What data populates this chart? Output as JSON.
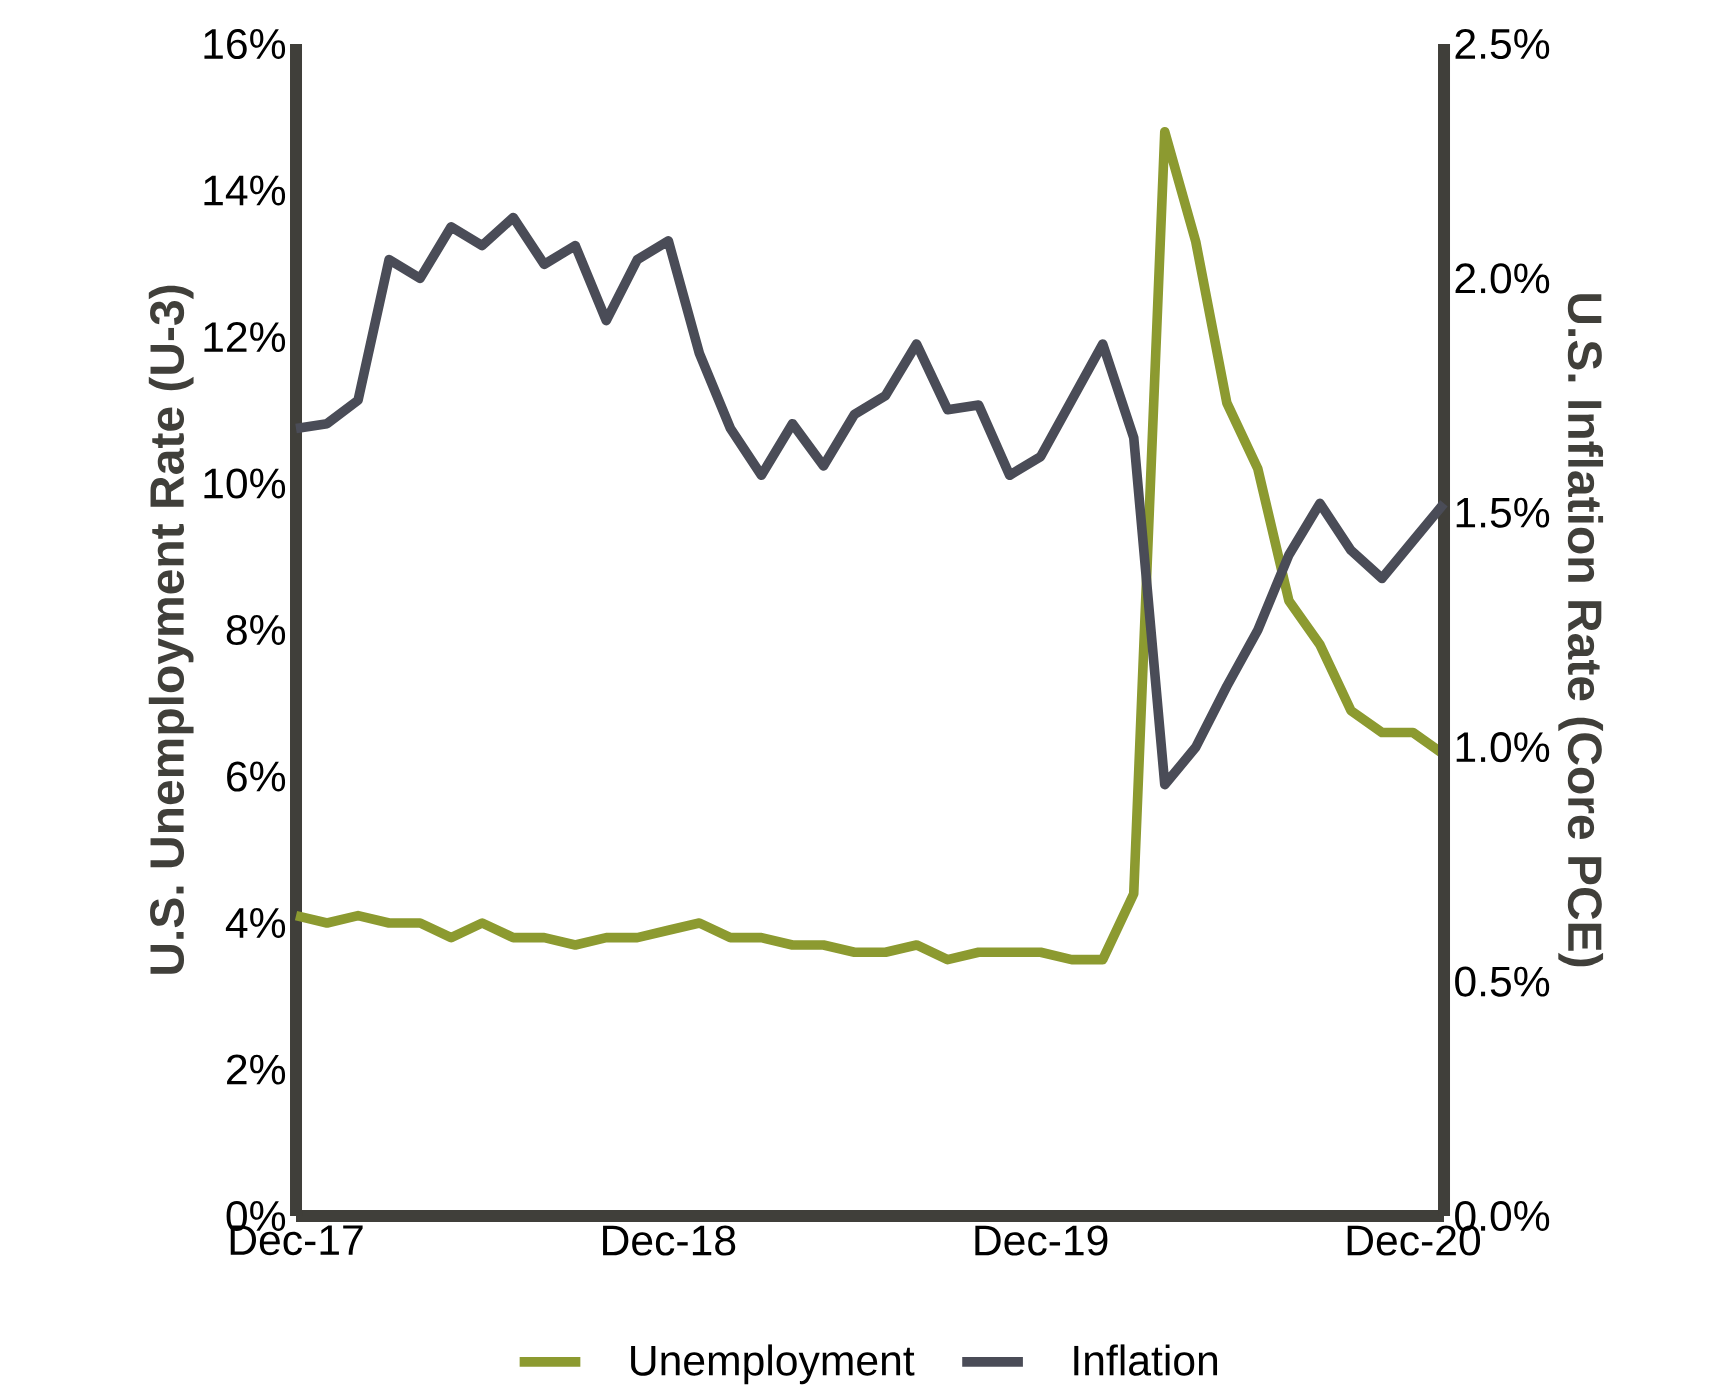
{
  "chart_data": {
    "type": "line",
    "xlabel": null,
    "ylabel": "U.S. Unemployment Rate (U-3)",
    "y2label": "U.S. Inflation Rate (Core PCE)",
    "categories": [
      "Dec-17",
      null,
      null,
      null,
      null,
      null,
      null,
      null,
      null,
      null,
      null,
      null,
      "Dec-18",
      null,
      null,
      null,
      null,
      null,
      null,
      null,
      null,
      null,
      null,
      null,
      "Dec-19",
      null,
      null,
      null,
      null,
      null,
      null,
      null,
      null,
      null,
      null,
      null,
      "Dec-20",
      null
    ],
    "series": [
      {
        "name": "Unemployment",
        "color": "#8c9a30",
        "values": [
          4.1,
          4.0,
          4.1,
          4.0,
          4.0,
          3.8,
          4.0,
          3.8,
          3.8,
          3.7,
          3.8,
          3.8,
          3.9,
          4.0,
          3.8,
          3.8,
          3.7,
          3.7,
          3.6,
          3.6,
          3.7,
          3.5,
          3.6,
          3.6,
          3.6,
          3.5,
          3.5,
          4.4,
          14.8,
          13.3,
          11.1,
          10.2,
          8.4,
          7.8,
          6.9,
          6.6,
          6.6,
          6.3
        ]
      },
      {
        "name": "Inflation",
        "color": "#4a4c57",
        "axis": "y2",
        "values": [
          1.68,
          1.69,
          1.74,
          2.04,
          2.0,
          2.11,
          2.07,
          2.13,
          2.03,
          2.07,
          1.91,
          2.04,
          2.08,
          1.84,
          1.68,
          1.58,
          1.69,
          1.6,
          1.71,
          1.75,
          1.86,
          1.72,
          1.73,
          1.58,
          1.62,
          1.74,
          1.86,
          1.66,
          0.92,
          1.0,
          1.13,
          1.25,
          1.41,
          1.52,
          1.42,
          1.36,
          1.44,
          1.52
        ]
      }
    ],
    "ylim": [
      0,
      16
    ],
    "yticks": [
      {
        "value": 0,
        "label": "0%"
      },
      {
        "value": 2,
        "label": "2%"
      },
      {
        "value": 4,
        "label": "4%"
      },
      {
        "value": 6,
        "label": "6%"
      },
      {
        "value": 8,
        "label": "8%"
      },
      {
        "value": 10,
        "label": "10%"
      },
      {
        "value": 12,
        "label": "12%"
      },
      {
        "value": 14,
        "label": "14%"
      },
      {
        "value": 16,
        "label": "16%"
      }
    ],
    "y2lim": [
      0,
      2.5
    ],
    "y2ticks": [
      {
        "value": 0,
        "label": "0.0%"
      },
      {
        "value": 0.5,
        "label": "0.5%"
      },
      {
        "value": 1.0,
        "label": "1.0%"
      },
      {
        "value": 1.5,
        "label": "1.5%"
      },
      {
        "value": 2.0,
        "label": "2.0%"
      },
      {
        "value": 2.5,
        "label": "2.5%"
      }
    ],
    "legend": "bottom",
    "grid": false,
    "marker": "none",
    "line_style": "solid"
  }
}
